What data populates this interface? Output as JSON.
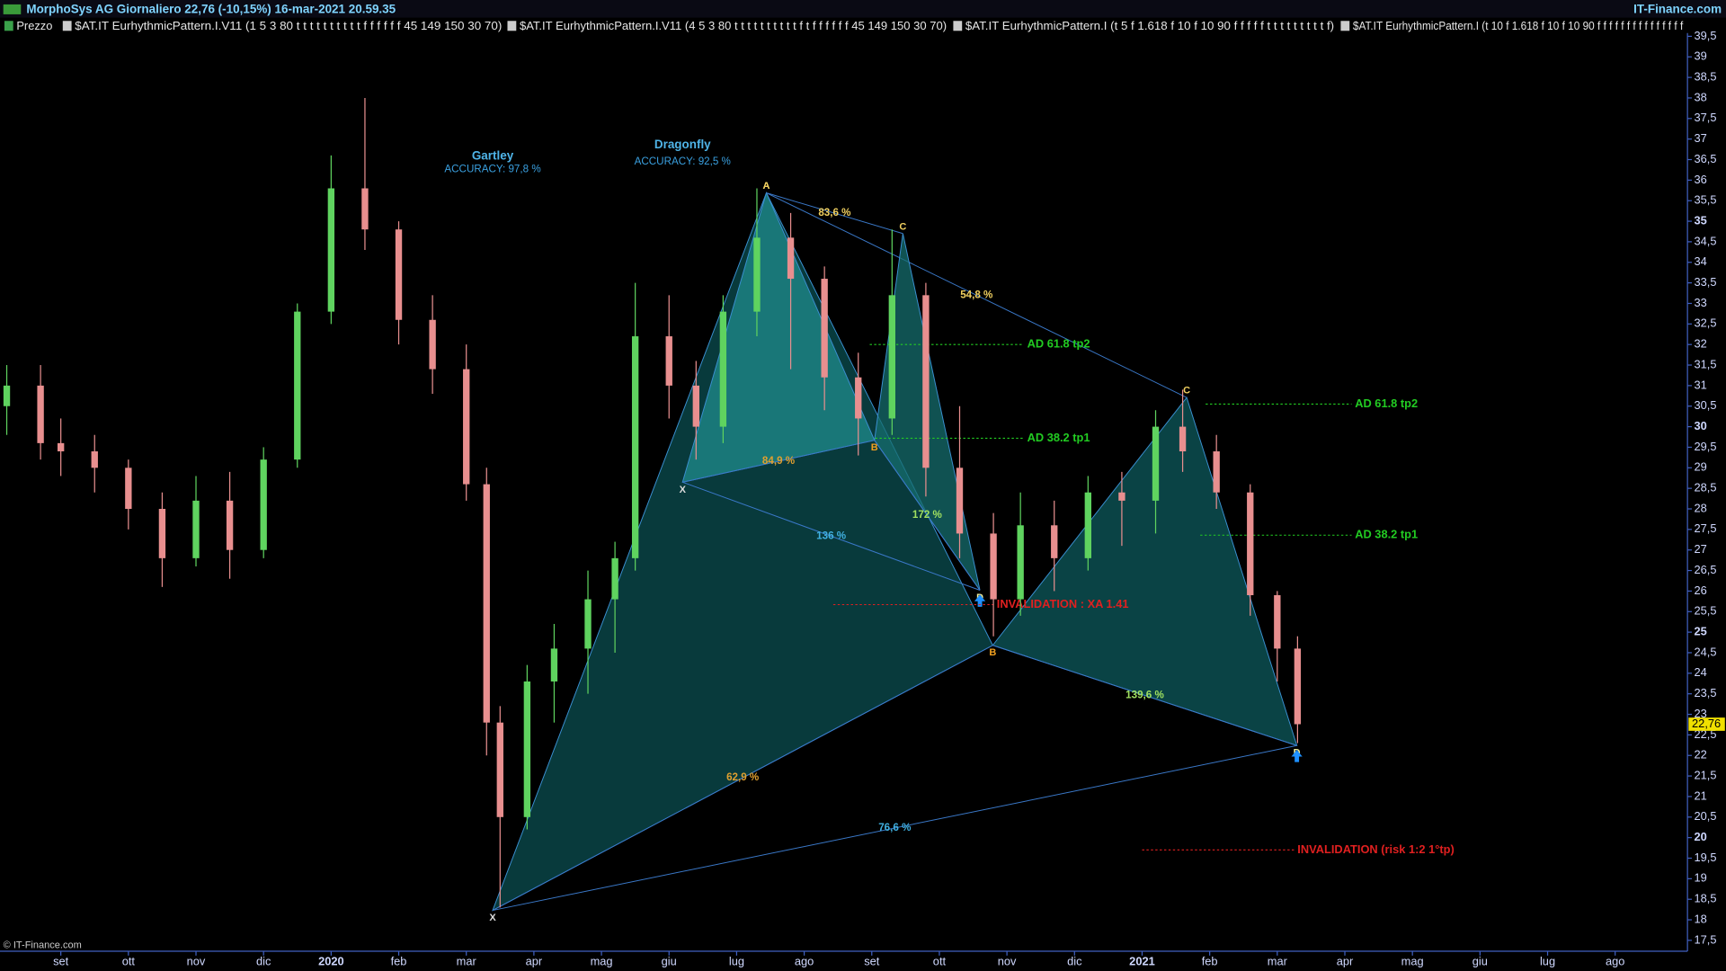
{
  "header": {
    "title": "MorphoSys AG Giornaliero 22,76 (-10,15%) 16-mar-2021 20.59.35",
    "brand": "IT-Finance.com",
    "legend": [
      "Prezzo",
      "$AT.IT EurhythmicPattern.I.V11 (1 5 3 80 t t t t t t t t t t f f f f f f 45 149 150 30 70)",
      "$AT.IT EurhythmicPattern.I.V11 (4 5 3 80 t t t t t t t t t t f t f f f f f f 45 149 150 30 70)",
      "$AT.IT EurhythmicPattern.I (t 5 f 1.618 f 10 f 10 90 f f f f f t t t t t t t t t f)",
      "$AT.IT EurhythmicPattern.I (t 10 f 1.618 f 10 f 10 90 f f f f f f f f f f f f f f f"
    ],
    "copyright": "© IT-Finance.com"
  },
  "chart_data": {
    "type": "candlestick",
    "up_color": "#5fd35f",
    "down_color": "#e88f8f",
    "last_price": {
      "value": 22.76,
      "label": "22,76"
    },
    "xlim": [
      -0.9,
      24.07
    ],
    "xticks": [
      {
        "value": 0,
        "label": "set"
      },
      {
        "value": 1,
        "label": "ott"
      },
      {
        "value": 2,
        "label": "nov"
      },
      {
        "value": 3,
        "label": "dic"
      },
      {
        "value": 4,
        "label": "2020"
      },
      {
        "value": 5,
        "label": "feb"
      },
      {
        "value": 6,
        "label": "mar"
      },
      {
        "value": 7,
        "label": "apr"
      },
      {
        "value": 8,
        "label": "mag"
      },
      {
        "value": 9,
        "label": "giu"
      },
      {
        "value": 10,
        "label": "lug"
      },
      {
        "value": 11,
        "label": "ago"
      },
      {
        "value": 12,
        "label": "set"
      },
      {
        "value": 13,
        "label": "ott"
      },
      {
        "value": 14,
        "label": "nov"
      },
      {
        "value": 15,
        "label": "dic"
      },
      {
        "value": 16,
        "label": "2021"
      },
      {
        "value": 17,
        "label": "feb"
      },
      {
        "value": 18,
        "label": "mar"
      },
      {
        "value": 19,
        "label": "apr"
      },
      {
        "value": 20,
        "label": "mag"
      },
      {
        "value": 21,
        "label": "giu"
      },
      {
        "value": 22,
        "label": "lug"
      },
      {
        "value": 23,
        "label": "ago"
      }
    ],
    "ylim": [
      17.29,
      39.58
    ],
    "yticks": [
      {
        "value": 39.5,
        "label": "39,5"
      },
      39,
      {
        "value": 38.5,
        "label": "38,5"
      },
      38,
      {
        "value": 37.5,
        "label": "37,5"
      },
      37,
      {
        "value": 36.5,
        "label": "36,5"
      },
      36,
      {
        "value": 35.5,
        "label": "35,5"
      },
      35,
      {
        "value": 34.5,
        "label": "34,5"
      },
      34,
      {
        "value": 33.5,
        "label": "33,5"
      },
      33,
      {
        "value": 32.5,
        "label": "32,5"
      },
      32,
      {
        "value": 31.5,
        "label": "31,5"
      },
      31,
      {
        "value": 30.5,
        "label": "30,5"
      },
      30,
      {
        "value": 29.5,
        "label": "29,5"
      },
      29,
      {
        "value": 28.5,
        "label": "28,5"
      },
      28,
      {
        "value": 27.5,
        "label": "27,5"
      },
      27,
      {
        "value": 26.5,
        "label": "26,5"
      },
      26,
      {
        "value": 25.5,
        "label": "25,5"
      },
      25,
      {
        "value": 24.5,
        "label": "24,5"
      },
      24,
      {
        "value": 23.5,
        "label": "23,5"
      },
      23,
      {
        "value": 22.5,
        "label": "22,5"
      },
      22,
      {
        "value": 21.5,
        "label": "21,5"
      },
      21,
      {
        "value": 20.5,
        "label": "20,5"
      },
      20,
      {
        "value": 19.5,
        "label": "19,5"
      },
      19,
      {
        "value": 18.5,
        "label": "18,5"
      },
      18,
      {
        "value": 17.5,
        "label": "17,5"
      }
    ],
    "x": [
      -0.8,
      -0.3,
      0.0,
      0.5,
      1.0,
      1.5,
      2.0,
      2.5,
      3.0,
      3.5,
      4.0,
      4.5,
      5.0,
      5.5,
      6.0,
      6.3,
      6.5,
      6.9,
      7.3,
      7.8,
      8.2,
      8.5,
      9.0,
      9.4,
      9.8,
      10.3,
      10.8,
      11.3,
      11.8,
      12.3,
      12.8,
      13.3,
      13.8,
      14.2,
      14.7,
      15.2,
      15.7,
      16.2,
      16.6,
      17.1,
      17.6,
      18.0,
      18.3
    ],
    "open": [
      30.5,
      31,
      29.6,
      29.4,
      29,
      28,
      26.8,
      28.2,
      27,
      29.2,
      32.8,
      35.8,
      34.8,
      32.6,
      31.4,
      28.6,
      22.8,
      20.5,
      23.8,
      24.6,
      25.8,
      26.8,
      32.2,
      31,
      30,
      32.8,
      34.6,
      33.6,
      31.2,
      30.2,
      33.2,
      29,
      27.4,
      25.8,
      27.6,
      26.8,
      28.4,
      28.2,
      30,
      29.4,
      28.4,
      25.9,
      24.6
    ],
    "high": [
      31.5,
      31.5,
      30.2,
      29.8,
      29.2,
      28.4,
      28.8,
      28.9,
      29.5,
      33,
      36.6,
      38,
      35,
      33.2,
      32,
      29,
      23.2,
      24.2,
      25.2,
      26.5,
      27.2,
      33.5,
      33.2,
      31.6,
      33.2,
      35.8,
      35.2,
      33.9,
      31.8,
      34.8,
      33.5,
      30.5,
      27.9,
      28.4,
      28.2,
      28.8,
      28.9,
      30.4,
      30.9,
      29.8,
      28.6,
      26,
      24.9
    ],
    "low": [
      29.8,
      29.2,
      28.8,
      28.4,
      27.5,
      26.1,
      26.6,
      26.3,
      26.8,
      29,
      32.5,
      34.3,
      32,
      30.8,
      28.2,
      22,
      18.3,
      20.2,
      22.8,
      23.5,
      24.5,
      26.5,
      30.2,
      29.2,
      29.6,
      32.2,
      31.4,
      30.4,
      29.3,
      29.8,
      28.3,
      26.8,
      24.9,
      25.4,
      26,
      26.5,
      27.1,
      27.4,
      28.9,
      28,
      25.4,
      23.8,
      22.3
    ],
    "close": [
      31,
      29.6,
      29.4,
      29,
      28,
      26.8,
      28.2,
      27,
      29.2,
      32.8,
      35.8,
      34.8,
      32.6,
      31.4,
      28.6,
      22.8,
      20.5,
      23.8,
      24.6,
      25.8,
      26.8,
      32.2,
      31,
      30,
      32.8,
      34.6,
      33.6,
      31.2,
      30.2,
      33.2,
      29,
      27.4,
      25.8,
      27.6,
      26.8,
      28.4,
      28.2,
      30,
      29.4,
      28.4,
      25.9,
      24.6,
      22.76
    ],
    "patterns": [
      {
        "name": "Gartley",
        "accuracy": "ACCURACY: 97,8 %",
        "fill": "#0b4e50",
        "leg_fill": "#0d5a5c",
        "points": [
          {
            "label": "X",
            "x": 6.39,
            "y": 18.23
          },
          {
            "label": "A",
            "x": 10.44,
            "y": 35.69
          },
          {
            "label": "B",
            "x": 13.79,
            "y": 24.68
          },
          {
            "label": "C",
            "x": 16.66,
            "y": 30.71
          },
          {
            "label": "D",
            "x": 18.29,
            "y": 22.24
          }
        ],
        "ratios": [
          {
            "label": "62,9 %",
            "from": 0,
            "to": 2,
            "color": "#e0a030"
          },
          {
            "label": "54,8 %",
            "from": 1,
            "to": 3,
            "color": "#f0d060"
          },
          {
            "label": "139,6 %",
            "from": 2,
            "to": 4,
            "color": "#a0e060"
          },
          {
            "label": "76,6 %",
            "from": 0,
            "to": 4,
            "color": "#40b0e0"
          }
        ],
        "levels": [
          {
            "label": "AD 61.8 tp2",
            "value": 30.55,
            "from": 16.94,
            "to": 19.1,
            "color": "#22cc22"
          },
          {
            "label": "AD 38.2 tp1",
            "value": 27.36,
            "from": 16.86,
            "to": 19.1,
            "color": "#22cc22"
          },
          {
            "label": "INVALIDATION (risk 1:2 1°tp)",
            "value": 19.7,
            "from": 16.0,
            "to": 18.25,
            "color": "#e02020"
          }
        ]
      },
      {
        "name": "Dragonfly",
        "accuracy": "ACCURACY: 92,5 %",
        "fill": "#1f8c8c",
        "leg_fill": "#166e6e",
        "points": [
          {
            "label": "X",
            "x": 9.2,
            "y": 28.65
          },
          {
            "label": "A",
            "x": 10.44,
            "y": 35.69
          },
          {
            "label": "B",
            "x": 12.04,
            "y": 29.67
          },
          {
            "label": "C",
            "x": 12.46,
            "y": 34.7
          },
          {
            "label": "D",
            "x": 13.6,
            "y": 26.02
          }
        ],
        "ratios": [
          {
            "label": "84,9 %",
            "from": 0,
            "to": 2,
            "color": "#e0a030"
          },
          {
            "label": "83,6 %",
            "from": 1,
            "to": 3,
            "color": "#f0d060"
          },
          {
            "label": "172 %",
            "from": 2,
            "to": 4,
            "color": "#a0e060"
          },
          {
            "label": "136 %",
            "from": 0,
            "to": 4,
            "color": "#40b0e0"
          }
        ],
        "levels": [
          {
            "label": "AD 61.8 tp2",
            "value": 32.0,
            "from": 11.97,
            "to": 14.25,
            "color": "#22cc22"
          },
          {
            "label": "AD 38.2 tp1",
            "value": 29.72,
            "from": 12.05,
            "to": 14.25,
            "color": "#22cc22"
          },
          {
            "label": "INVALIDATION : XA 1.41",
            "value": 25.67,
            "from": 11.43,
            "to": 13.8,
            "color": "#e02020"
          }
        ]
      }
    ]
  }
}
